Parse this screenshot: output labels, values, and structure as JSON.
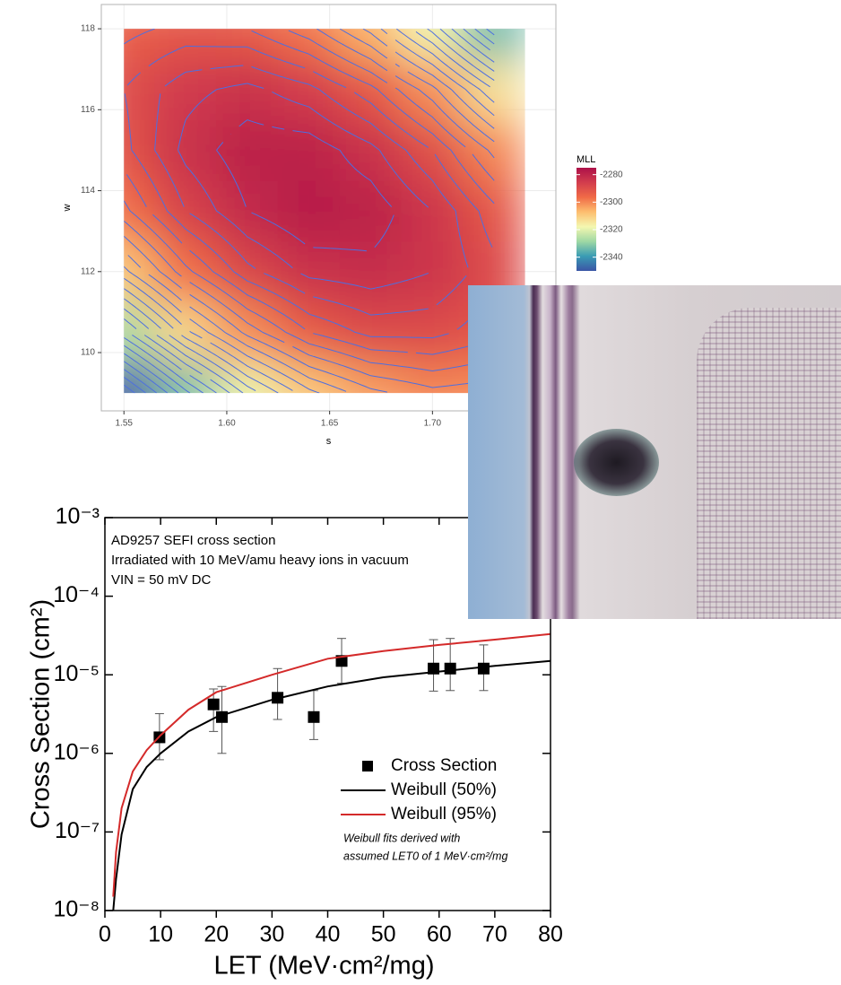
{
  "chart_data": [
    {
      "type": "contour",
      "x_label": "s",
      "y_label": "w",
      "x": [
        1.55,
        1.58,
        1.61,
        1.64,
        1.67,
        1.7,
        1.73
      ],
      "y": [
        109,
        110.5,
        112,
        113.5,
        115,
        116.5,
        118
      ],
      "z": [
        [
          -2350,
          -2333,
          -2319,
          -2309,
          -2303,
          -2300,
          -2301
        ],
        [
          -2327,
          -2312,
          -2301,
          -2293,
          -2289,
          -2289,
          -2292
        ],
        [
          -2309,
          -2297,
          -2288,
          -2283,
          -2282,
          -2284,
          -2289
        ],
        [
          -2297,
          -2287,
          -2281,
          -2278,
          -2279,
          -2284,
          -2292
        ],
        [
          -2291,
          -2283,
          -2279,
          -2279,
          -2283,
          -2290,
          -2300
        ],
        [
          -2290,
          -2285,
          -2283,
          -2286,
          -2292,
          -2301,
          -2314
        ],
        [
          -2294,
          -2292,
          -2293,
          -2298,
          -2306,
          -2318,
          -2334
        ]
      ],
      "xlim": [
        1.539,
        1.76
      ],
      "xticks": [
        1.55,
        {
          "value": 1.6,
          "label": "1.60"
        },
        1.65,
        {
          "value": 1.7,
          "label": "1.70"
        }
      ],
      "ylim": [
        108.56,
        118.6
      ],
      "yticks": [
        110,
        112,
        114,
        116,
        118
      ],
      "grid": true,
      "colorbar": {
        "title": "MLL",
        "zlim": [
          -2350,
          -2275
        ],
        "ticks": [
          -2280,
          -2300,
          -2320,
          -2340
        ],
        "colors": [
          "#3b55a6",
          "#3a9cb4",
          "#9fd8a4",
          "#f4f7b0",
          "#fdbe6f",
          "#f06a47",
          "#d23d4d",
          "#ad1149"
        ]
      },
      "contour_color": "#4d6fe0",
      "contour_step": 3
    },
    {
      "type": "scatter",
      "x_label": "LET (MeV·cm²/mg)",
      "y_label": "Cross Section (cm²)",
      "ylog": true,
      "xlim": [
        0,
        80
      ],
      "xticks": [
        0,
        10,
        20,
        30,
        40,
        50,
        60,
        70,
        80
      ],
      "ylim": [
        1e-08,
        0.001
      ],
      "yticks": [
        {
          "value": 0.001,
          "label": "10⁻³"
        },
        {
          "value": 0.0001,
          "label": "10⁻⁴"
        },
        {
          "value": 1e-05,
          "label": "10⁻⁵"
        },
        {
          "value": 1e-06,
          "label": "10⁻⁶"
        },
        {
          "value": 1e-07,
          "label": "10⁻⁷"
        },
        {
          "value": 1e-08,
          "label": "10⁻⁸"
        }
      ],
      "annotations": [
        "AD9257 SEFI cross section",
        "Irradiated with 10 MeV/amu heavy ions in vacuum",
        "VIN = 50 mV DC"
      ],
      "note": [
        "Weibull fits derived with",
        "assumed LET0 of 1 MeV·cm²/mg"
      ],
      "legend": "lower right",
      "series": [
        {
          "name": "Cross Section",
          "type": "scatter",
          "color": "#000000",
          "x": [
            9.8,
            19.5,
            21,
            31,
            37.5,
            42.5,
            59,
            62,
            68
          ],
          "values": [
            1.6e-06,
            4.2e-06,
            2.9e-06,
            5.1e-06,
            2.9e-06,
            1.5e-05,
            1.2e-05,
            1.2e-05,
            1.2e-05
          ],
          "y_low": [
            8.3e-07,
            1.9e-06,
            1e-06,
            2.7e-06,
            1.5e-06,
            7.8e-06,
            6.2e-06,
            6.3e-06,
            6.3e-06
          ],
          "y_high": [
            3.2e-06,
            6.6e-06,
            7.1e-06,
            1.2e-05,
            6.3e-06,
            2.9e-05,
            2.8e-05,
            2.9e-05,
            2.4e-05
          ]
        },
        {
          "name": "Weibull (50%)",
          "type": "line",
          "color": "#000000",
          "x": [
            1.5,
            2,
            3,
            5,
            7.5,
            10,
            15,
            20,
            30,
            40,
            50,
            60,
            70,
            80
          ],
          "values": [
            1e-08,
            2.5e-08,
            9.3e-08,
            3.5e-07,
            6.7e-07,
            1e-06,
            1.9e-06,
            2.9e-06,
            4.8e-06,
            7.1e-06,
            9.3e-06,
            1.1e-05,
            1.3e-05,
            1.5e-05
          ]
        },
        {
          "name": "Weibull (95%)",
          "type": "line",
          "color": "#d42a2a",
          "x": [
            1.5,
            2,
            3,
            5,
            7.5,
            10,
            15,
            20,
            30,
            40,
            50,
            60,
            70,
            80
          ],
          "values": [
            1.5e-08,
            5.5e-08,
            2e-07,
            5.9e-07,
            1.1e-06,
            1.7e-06,
            3.6e-06,
            6e-06,
            1e-05,
            1.6e-05,
            2e-05,
            2.4e-05,
            2.8e-05,
            3.3e-05
          ]
        }
      ]
    }
  ]
}
